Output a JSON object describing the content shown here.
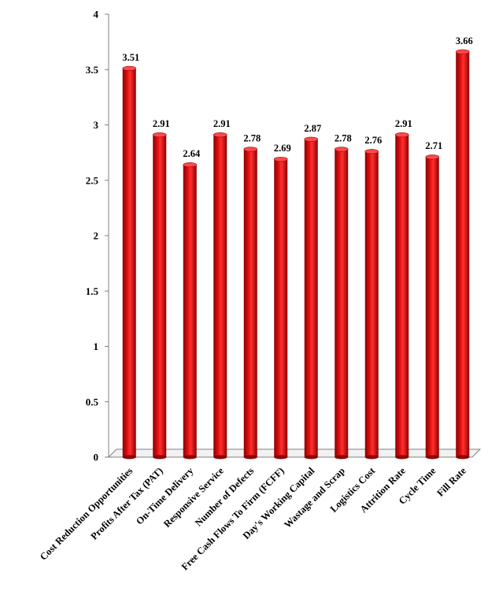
{
  "chart_data": {
    "type": "bar",
    "title": "",
    "xlabel": "",
    "ylabel": "",
    "ylim": [
      0,
      4
    ],
    "yticks": [
      "0",
      "0.5",
      "1",
      "1.5",
      "2",
      "2.5",
      "3",
      "3.5",
      "4"
    ],
    "categories": [
      "Cost Reduction Opportunities",
      "Profits After Tax (PAT)",
      "On-Time Delivery",
      "Responsive Service",
      "Number of Defects",
      "Free Cash Flows To Firm (FCFF)",
      "Day's Working Capital",
      "Wastage and Scrap",
      "Logistics Cost",
      "Attrition Rate",
      "Cycle Time",
      "Fill Rate"
    ],
    "values": [
      3.51,
      2.91,
      2.64,
      2.91,
      2.78,
      2.69,
      2.87,
      2.78,
      2.76,
      2.91,
      2.71,
      3.66
    ],
    "value_labels": [
      "3.51",
      "2.91",
      "2.64",
      "2.91",
      "2.78",
      "2.69",
      "2.87",
      "2.78",
      "2.76",
      "2.91",
      "2.71",
      "3.66"
    ],
    "grid": false,
    "legend": "none",
    "colors": {
      "bar": "#c00000",
      "bar_dark": "#7a0000",
      "bar_light": "#ff6a6a",
      "floor": "#d9d9d9"
    }
  }
}
